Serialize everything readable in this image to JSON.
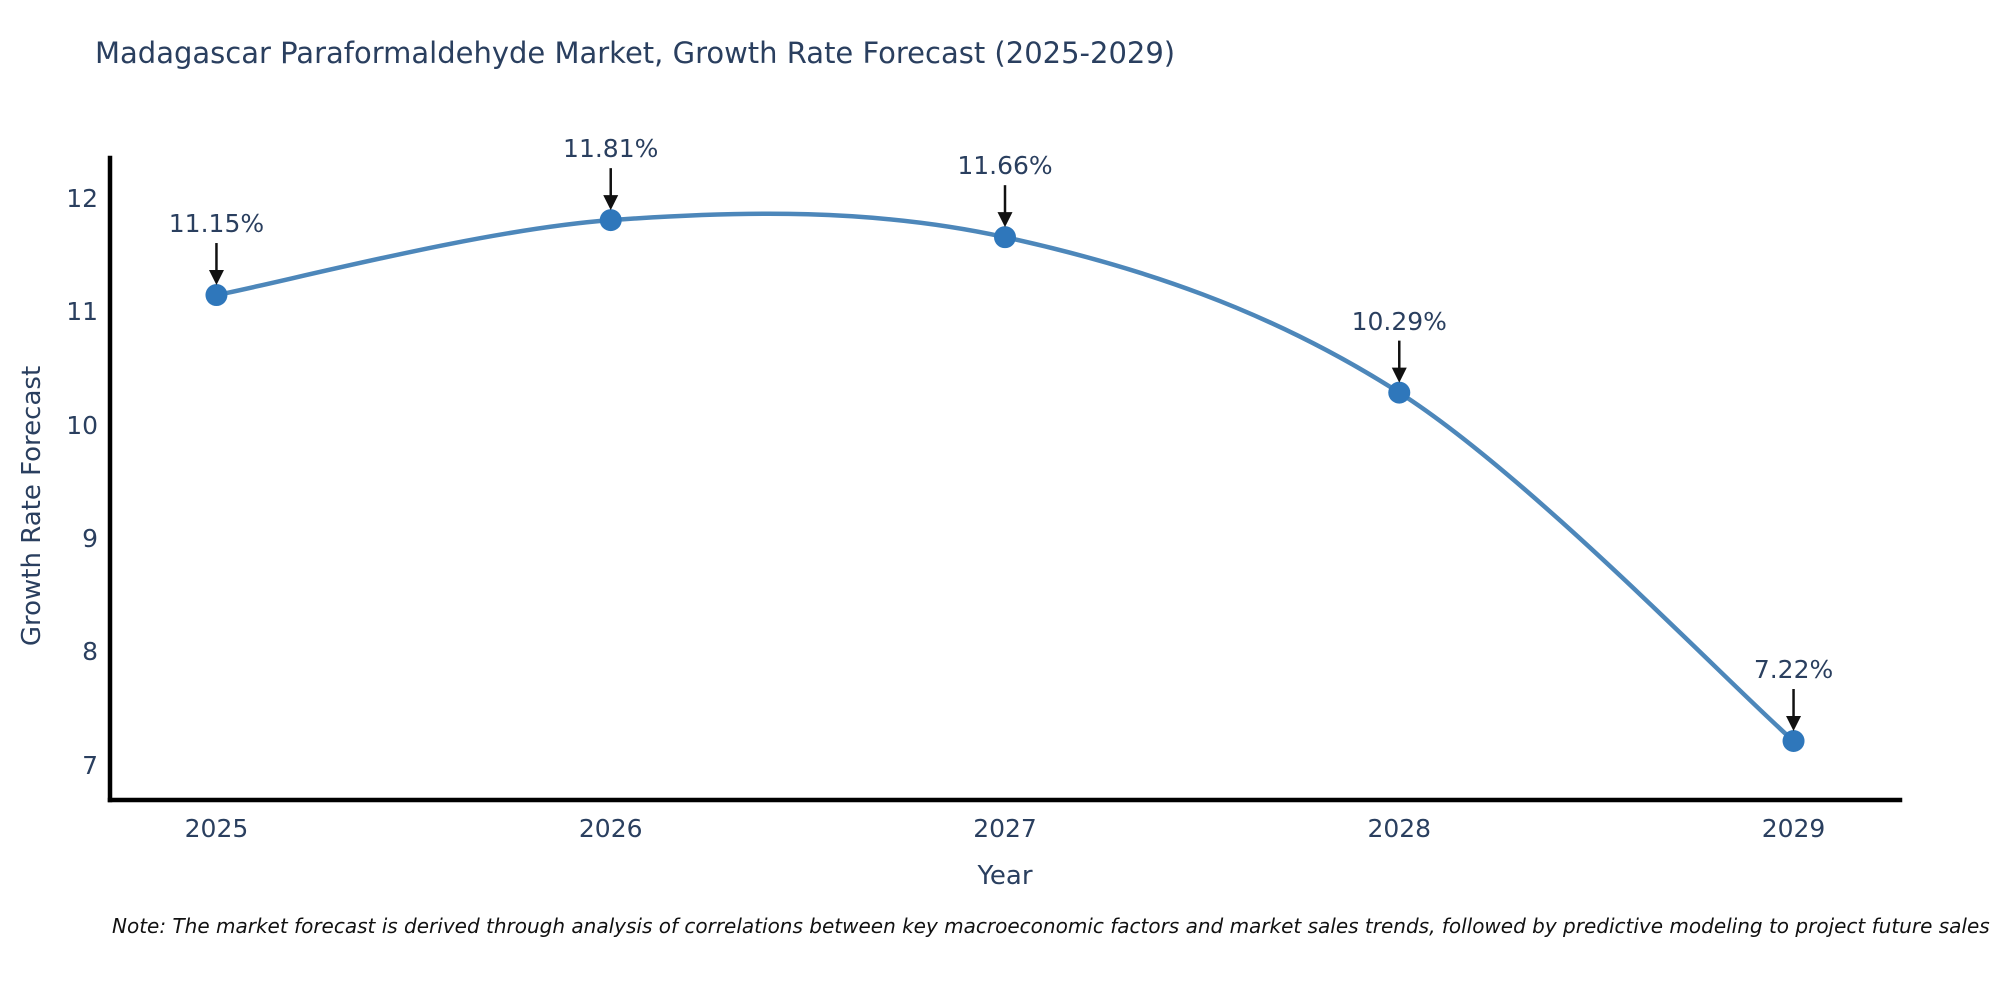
{
  "note": "Note: The market forecast is derived through analysis of correlations between key macroeconomic factors and market sales trends, followed by predictive modeling to project future sales",
  "chart_data": {
    "type": "line",
    "title": "Madagascar Paraformaldehyde Market, Growth Rate Forecast (2025-2029)",
    "xlabel": "Year",
    "ylabel": "Growth Rate Forecast",
    "x": [
      2025,
      2026,
      2027,
      2028,
      2029
    ],
    "series": [
      {
        "name": "Growth Rate Forecast",
        "values": [
          11.15,
          11.81,
          11.66,
          10.29,
          7.22
        ]
      }
    ],
    "annotations": [
      "11.15%",
      "11.81%",
      "11.66%",
      "10.29%",
      "7.22%"
    ],
    "xticks": [
      "2025",
      "2026",
      "2027",
      "2028",
      "2029"
    ],
    "yticks": [
      7,
      8,
      9,
      10,
      11,
      12
    ],
    "xlim": [
      2024.73,
      2029.27
    ],
    "ylim": [
      6.7,
      12.34
    ],
    "grid": false,
    "legend": "none",
    "smooth": true,
    "colors": {
      "line": "#4d87ba",
      "marker": "#2f77bb",
      "axis": "#000000",
      "text": "#2a3f5f",
      "arrow": "#111111",
      "background": "#ffffff"
    }
  }
}
